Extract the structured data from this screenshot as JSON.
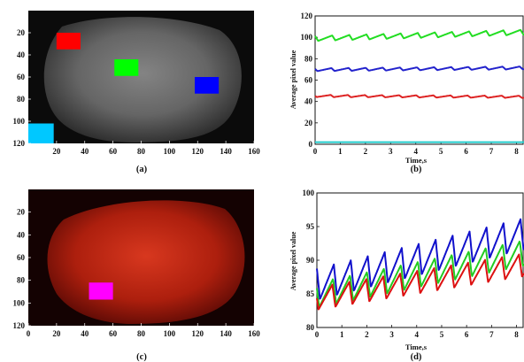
{
  "chart_data": [
    {
      "panel": "a",
      "type": "heatmap",
      "caption": "(a)",
      "xlim": [
        0,
        160
      ],
      "ylim": [
        0,
        120
      ],
      "x_ticks": [
        "20",
        "40",
        "60",
        "80",
        "100",
        "120",
        "140",
        "160"
      ],
      "y_ticks": [
        "20",
        "40",
        "60",
        "80",
        "100",
        "120"
      ],
      "colormap": "grayscale",
      "regions": [
        {
          "color": "#ff0000",
          "x": [
            20,
            37
          ],
          "y": [
            20,
            35
          ]
        },
        {
          "color": "#00ff00",
          "x": [
            61,
            78
          ],
          "y": [
            44,
            59
          ]
        },
        {
          "color": "#0000ff",
          "x": [
            118,
            135
          ],
          "y": [
            60,
            75
          ]
        },
        {
          "color": "#00c8ff",
          "x": [
            0,
            18
          ],
          "y": [
            102,
            120
          ]
        }
      ]
    },
    {
      "panel": "b",
      "type": "line",
      "caption": "(b)",
      "xlabel": "Time,s",
      "ylabel": "Average pixel value",
      "xlim": [
        0,
        8.3
      ],
      "ylim": [
        0,
        120
      ],
      "x_ticks": [
        "0",
        "1",
        "2",
        "3",
        "4",
        "5",
        "6",
        "7",
        "8"
      ],
      "y_ticks": [
        "0",
        "20",
        "40",
        "60",
        "80",
        "100",
        "120"
      ],
      "series": [
        {
          "color": "#22dd22",
          "base": 98.5,
          "slope": 0.7,
          "amp": 5.5,
          "period": 0.68
        },
        {
          "color": "#2222cc",
          "base": 69.5,
          "slope": 0.2,
          "amp": 3.2,
          "period": 0.68
        },
        {
          "color": "#dd2222",
          "base": 45.0,
          "slope": -0.1,
          "amp": 2.4,
          "period": 0.68
        },
        {
          "color": "#22cccc",
          "base": 2.0,
          "slope": 0.0,
          "amp": 0.0,
          "period": 0.68
        }
      ]
    },
    {
      "panel": "c",
      "type": "heatmap",
      "caption": "(c)",
      "xlim": [
        0,
        160
      ],
      "ylim": [
        0,
        120
      ],
      "x_ticks": [
        "0",
        "20",
        "40",
        "60",
        "80",
        "100",
        "120",
        "140",
        "160"
      ],
      "y_ticks": [
        "20",
        "40",
        "60",
        "80",
        "100",
        "120"
      ],
      "colormap": "red",
      "regions": [
        {
          "color": "#ff00ff",
          "x": [
            43,
            60
          ],
          "y": [
            82,
            97
          ]
        }
      ]
    },
    {
      "panel": "d",
      "type": "line",
      "caption": "(d)",
      "xlabel": "Time,s",
      "ylabel": "Average pixel value",
      "xlim": [
        0,
        8.3
      ],
      "ylim": [
        80,
        100
      ],
      "x_ticks": [
        "0",
        "1",
        "2",
        "3",
        "4",
        "5",
        "6",
        "7",
        "8"
      ],
      "y_ticks": [
        "80",
        "85",
        "90",
        "95",
        "100"
      ],
      "series": [
        {
          "color": "#1111cc",
          "base": 86.0,
          "slope": 0.9,
          "amp": 5.5,
          "period": 0.68
        },
        {
          "color": "#22cc22",
          "base": 84.5,
          "slope": 0.75,
          "amp": 4.5,
          "period": 0.68
        },
        {
          "color": "#dd1111",
          "base": 84.0,
          "slope": 0.6,
          "amp": 4.0,
          "period": 0.68
        }
      ]
    }
  ]
}
